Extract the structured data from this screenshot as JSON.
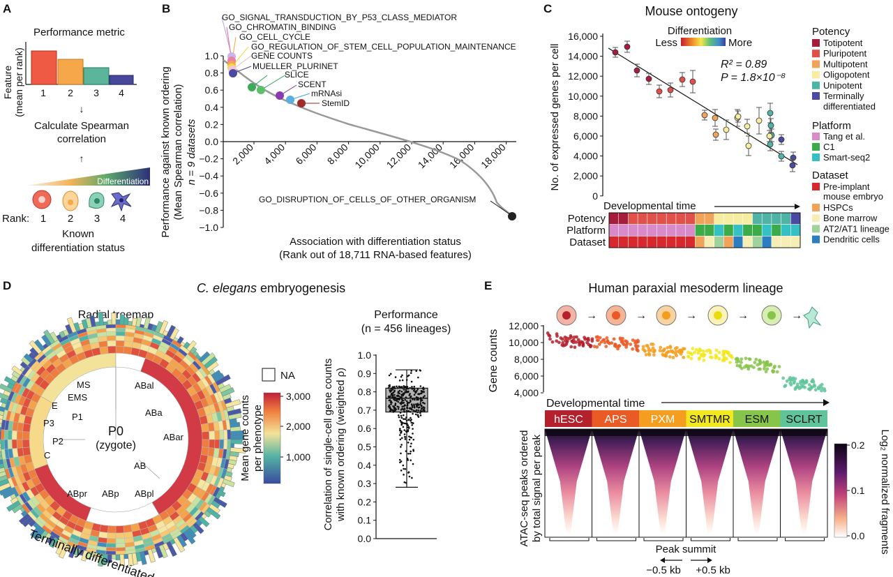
{
  "panel_labels": [
    "A",
    "B",
    "C",
    "D",
    "E"
  ],
  "panel_a": {
    "metric_title": "Performance metric",
    "ylabel_1": "Feature",
    "ylabel_2": "(mean per rank)",
    "rank_ticks": [
      "1",
      "2",
      "3",
      "4"
    ],
    "step1": "Calculate Spearman",
    "step2": "correlation",
    "gradient_label": "Differentiation",
    "rank_label": "Rank:",
    "rank_values": [
      "1",
      "2",
      "3",
      "4"
    ],
    "bottom_1": "Known",
    "bottom_2": "differentiation status",
    "bar_colors": [
      "#ef5a45",
      "#f5a74a",
      "#5ab59a",
      "#47479c"
    ]
  },
  "panel_b": {
    "ylabel_1": "Performance against known ordering",
    "ylabel_2": "(Mean Spearman correlation)",
    "ylabel_3": "n = 9 datasets",
    "xlabel_1": "Association with differentiation status",
    "xlabel_2": "(Rank out of 18,711 RNA-based features)",
    "y_ticks": [
      "1.0",
      "0.8",
      "0.6",
      "0.4",
      "0.2",
      "0.0",
      "−0.2",
      "−0.4",
      "−0.6",
      "−0.8",
      "−1.0"
    ],
    "x_ticks": [
      "2,000",
      "4,000",
      "6,000",
      "8,000",
      "10,000",
      "12,000",
      "14,000",
      "16,000",
      "18,000"
    ],
    "annotations": [
      "GO_SIGNAL_TRANSDUCTION_BY_P53_CLASS_MEDIATOR",
      "GO_CHROMATIN_BINDING",
      "GO_CELL_CYCLE",
      "GO_REGULATION_OF_STEM_CELL_POPULATION_MAINTENANCE",
      "GENE COUNTS",
      "MUELLER_PLURINET",
      "SLICE",
      "SCENT",
      "mRNAsi",
      "StemID",
      "GO_DISRUPTION_OF_CELLS_OF_OTHER_ORGANISM"
    ]
  },
  "panel_c": {
    "title": "Mouse ontogeny",
    "diff_label": "Differentiation",
    "less": "Less",
    "more": "More",
    "r2": "R² = 0.89",
    "pval": "P = 1.8×10⁻⁸",
    "ylabel": "No. of expressed genes per cell",
    "xlabel": "Developmental time",
    "y_ticks": [
      "16,000",
      "14,000",
      "12,000",
      "10,000",
      "8,000",
      "6,000",
      "4,000",
      "2,000",
      "0"
    ],
    "track_labels": [
      "Potency",
      "Platform",
      "Dataset"
    ],
    "legend_potency_title": "Potency",
    "legend_potency": [
      {
        "label": "Totipotent",
        "color": "#a51c3c"
      },
      {
        "label": "Pluripotent",
        "color": "#e2504a"
      },
      {
        "label": "Multipotent",
        "color": "#f2a35a"
      },
      {
        "label": "Oligopotent",
        "color": "#f7eda0"
      },
      {
        "label": "Unipotent",
        "color": "#4fb3a5"
      },
      {
        "label": "Terminally",
        "color": "#4a4aa3"
      }
    ],
    "legend_potency_extra": "differentiated",
    "legend_platform_title": "Platform",
    "legend_platform": [
      {
        "label": "Tang et al.",
        "color": "#d98ac9"
      },
      {
        "label": "C1",
        "color": "#3cab4a"
      },
      {
        "label": "Smart-seq2",
        "color": "#35c1c4"
      }
    ],
    "legend_dataset_title": "Dataset",
    "legend_dataset": [
      {
        "label": "Pre-implant",
        "color": "#d8282e"
      },
      {
        "label": "HSPCs",
        "color": "#f2a35a"
      },
      {
        "label": "Bone marrow",
        "color": "#f7eeb5"
      },
      {
        "label": "AT2/AT1 lineage",
        "color": "#9fd39b"
      },
      {
        "label": "Dendritic cells",
        "color": "#2b7fc1"
      }
    ],
    "legend_dataset_extra": "mouse embryo"
  },
  "panel_d": {
    "title_italic": "C. elegans",
    "title_rest": " embryogenesis",
    "treemap_title": "Radial treemap",
    "bottom_label": "Terminally differentiated cells",
    "nodes": [
      "P0",
      "(zygote)",
      "MS",
      "EMS",
      "E",
      "P1",
      "P3",
      "P2",
      "C",
      "ABal",
      "ABa",
      "ABar",
      "AB",
      "ABpr",
      "ABp",
      "ABpl"
    ],
    "na_label": "NA",
    "cbar_label_1": "Mean gene counts",
    "cbar_label_2": "per phenotype",
    "cbar_ticks": [
      "3,000",
      "2,000",
      "1,000"
    ],
    "perf_title": "Performance",
    "perf_sub": "(n = 456 lineages)",
    "ylabel_1": "Correlation of single-cell gene counts",
    "ylabel_2": "with known ordering (weighted ρ)",
    "y_ticks": [
      "1.0",
      "0.9",
      "0.8",
      "0.7",
      "0.6",
      "0.5",
      "0.4",
      "0.3",
      "0.2",
      "0.1",
      "0.0"
    ]
  },
  "panel_e": {
    "title": "Human paraxial mesoderm lineage",
    "ylabel": "Gene counts",
    "y_ticks": [
      "12,000",
      "10,000",
      "8,000",
      "6,000",
      "4,000"
    ],
    "xlabel": "Developmental time",
    "stages": [
      {
        "label": "hESC",
        "color": "#b5202d"
      },
      {
        "label": "APS",
        "color": "#ea5a24"
      },
      {
        "label": "PXM",
        "color": "#f59d1e"
      },
      {
        "label": "SMTMR",
        "color": "#f2e81f"
      },
      {
        "label": "ESM",
        "color": "#86c44a"
      },
      {
        "label": "SCLRT",
        "color": "#5fc49a"
      }
    ],
    "atac_label_1": "ATAC-seq peaks ordered",
    "atac_label_2": "by total signal per peak",
    "cbar_title": "Log₂ normalized fragments",
    "cbar_ticks": [
      "0.2",
      "0.1",
      "0.0"
    ],
    "peak_summit": "Peak summit",
    "minus": "−0.5 kb",
    "plus": "+0.5 kb"
  }
}
